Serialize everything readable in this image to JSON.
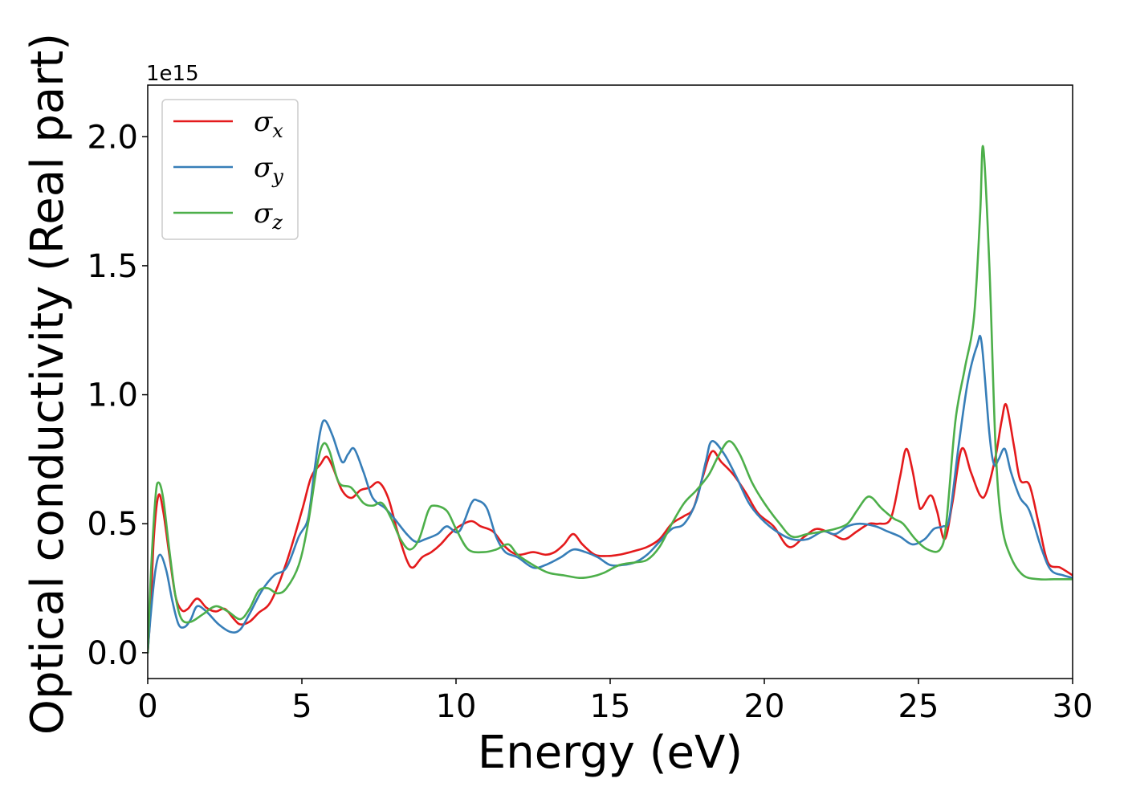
{
  "chart_data": {
    "type": "line",
    "xlabel": "Energy (eV)",
    "ylabel": "Optical conductivity (Real part)",
    "y_offset_text": "1e15",
    "xlim": [
      0,
      30
    ],
    "ylim": [
      -0.1,
      2.2
    ],
    "x_ticks": [
      0,
      5,
      10,
      15,
      20,
      25,
      30
    ],
    "x_tick_labels": [
      "0",
      "5",
      "10",
      "15",
      "20",
      "25",
      "30"
    ],
    "y_ticks": [
      0.0,
      0.5,
      1.0,
      1.5,
      2.0
    ],
    "y_tick_labels": [
      "0.0",
      "0.5",
      "1.0",
      "1.5",
      "2.0"
    ],
    "grid": false,
    "legend_position": "top-left",
    "series": [
      {
        "name": "σx",
        "label_main": "σ",
        "label_sub": "x",
        "color": "#e41a1c",
        "points": [
          [
            0,
            0
          ],
          [
            0.1,
            0.18
          ],
          [
            0.2,
            0.45
          ],
          [
            0.35,
            0.61
          ],
          [
            0.5,
            0.55
          ],
          [
            0.7,
            0.38
          ],
          [
            0.9,
            0.22
          ],
          [
            1.1,
            0.165
          ],
          [
            1.3,
            0.17
          ],
          [
            1.6,
            0.21
          ],
          [
            1.9,
            0.175
          ],
          [
            2.2,
            0.16
          ],
          [
            2.5,
            0.17
          ],
          [
            2.8,
            0.13
          ],
          [
            3.0,
            0.11
          ],
          [
            3.3,
            0.12
          ],
          [
            3.6,
            0.155
          ],
          [
            4.0,
            0.2
          ],
          [
            4.5,
            0.35
          ],
          [
            5.0,
            0.55
          ],
          [
            5.3,
            0.68
          ],
          [
            5.6,
            0.73
          ],
          [
            5.8,
            0.76
          ],
          [
            6.0,
            0.72
          ],
          [
            6.3,
            0.63
          ],
          [
            6.6,
            0.6
          ],
          [
            6.9,
            0.63
          ],
          [
            7.2,
            0.64
          ],
          [
            7.5,
            0.66
          ],
          [
            7.8,
            0.6
          ],
          [
            8.1,
            0.47
          ],
          [
            8.4,
            0.36
          ],
          [
            8.6,
            0.33
          ],
          [
            8.9,
            0.37
          ],
          [
            9.2,
            0.39
          ],
          [
            9.5,
            0.42
          ],
          [
            9.8,
            0.46
          ],
          [
            10.1,
            0.49
          ],
          [
            10.5,
            0.51
          ],
          [
            10.8,
            0.49
          ],
          [
            11.2,
            0.47
          ],
          [
            11.6,
            0.41
          ],
          [
            12.0,
            0.38
          ],
          [
            12.5,
            0.39
          ],
          [
            12.9,
            0.38
          ],
          [
            13.2,
            0.39
          ],
          [
            13.5,
            0.42
          ],
          [
            13.8,
            0.46
          ],
          [
            14.1,
            0.42
          ],
          [
            14.5,
            0.38
          ],
          [
            14.9,
            0.375
          ],
          [
            15.3,
            0.38
          ],
          [
            15.8,
            0.395
          ],
          [
            16.2,
            0.41
          ],
          [
            16.6,
            0.44
          ],
          [
            17.0,
            0.5
          ],
          [
            17.4,
            0.53
          ],
          [
            17.7,
            0.56
          ],
          [
            18.0,
            0.68
          ],
          [
            18.3,
            0.78
          ],
          [
            18.6,
            0.74
          ],
          [
            19.0,
            0.69
          ],
          [
            19.4,
            0.62
          ],
          [
            19.8,
            0.54
          ],
          [
            20.3,
            0.49
          ],
          [
            20.8,
            0.41
          ],
          [
            21.3,
            0.45
          ],
          [
            21.7,
            0.48
          ],
          [
            22.2,
            0.46
          ],
          [
            22.6,
            0.44
          ],
          [
            23.0,
            0.47
          ],
          [
            23.4,
            0.5
          ],
          [
            23.7,
            0.5
          ],
          [
            24.1,
            0.52
          ],
          [
            24.4,
            0.68
          ],
          [
            24.6,
            0.79
          ],
          [
            24.8,
            0.71
          ],
          [
            25.0,
            0.58
          ],
          [
            25.1,
            0.56
          ],
          [
            25.4,
            0.61
          ],
          [
            25.6,
            0.55
          ],
          [
            25.85,
            0.44
          ],
          [
            26.1,
            0.58
          ],
          [
            26.4,
            0.79
          ],
          [
            26.7,
            0.7
          ],
          [
            27.0,
            0.61
          ],
          [
            27.2,
            0.62
          ],
          [
            27.5,
            0.76
          ],
          [
            27.7,
            0.9
          ],
          [
            27.85,
            0.96
          ],
          [
            28.1,
            0.8
          ],
          [
            28.3,
            0.67
          ],
          [
            28.6,
            0.65
          ],
          [
            28.9,
            0.5
          ],
          [
            29.2,
            0.35
          ],
          [
            29.6,
            0.33
          ],
          [
            30.0,
            0.3
          ]
        ]
      },
      {
        "name": "σy",
        "label_main": "σ",
        "label_sub": "y",
        "color": "#377eb8",
        "points": [
          [
            0,
            0
          ],
          [
            0.1,
            0.15
          ],
          [
            0.25,
            0.32
          ],
          [
            0.4,
            0.38
          ],
          [
            0.6,
            0.32
          ],
          [
            0.8,
            0.2
          ],
          [
            1.0,
            0.11
          ],
          [
            1.2,
            0.1
          ],
          [
            1.4,
            0.13
          ],
          [
            1.6,
            0.18
          ],
          [
            1.9,
            0.16
          ],
          [
            2.3,
            0.11
          ],
          [
            2.7,
            0.08
          ],
          [
            3.0,
            0.09
          ],
          [
            3.3,
            0.15
          ],
          [
            3.7,
            0.24
          ],
          [
            4.1,
            0.3
          ],
          [
            4.5,
            0.33
          ],
          [
            4.9,
            0.45
          ],
          [
            5.2,
            0.52
          ],
          [
            5.4,
            0.7
          ],
          [
            5.6,
            0.86
          ],
          [
            5.75,
            0.9
          ],
          [
            6.0,
            0.84
          ],
          [
            6.3,
            0.74
          ],
          [
            6.5,
            0.77
          ],
          [
            6.7,
            0.79
          ],
          [
            7.0,
            0.7
          ],
          [
            7.3,
            0.6
          ],
          [
            7.7,
            0.56
          ],
          [
            8.0,
            0.52
          ],
          [
            8.4,
            0.46
          ],
          [
            8.7,
            0.43
          ],
          [
            9.0,
            0.44
          ],
          [
            9.4,
            0.46
          ],
          [
            9.7,
            0.49
          ],
          [
            10.1,
            0.47
          ],
          [
            10.5,
            0.58
          ],
          [
            10.7,
            0.59
          ],
          [
            11.0,
            0.56
          ],
          [
            11.3,
            0.45
          ],
          [
            11.6,
            0.39
          ],
          [
            12.0,
            0.37
          ],
          [
            12.5,
            0.33
          ],
          [
            12.9,
            0.34
          ],
          [
            13.4,
            0.37
          ],
          [
            13.8,
            0.4
          ],
          [
            14.2,
            0.39
          ],
          [
            14.6,
            0.37
          ],
          [
            15.0,
            0.34
          ],
          [
            15.4,
            0.34
          ],
          [
            15.8,
            0.35
          ],
          [
            16.2,
            0.38
          ],
          [
            16.6,
            0.43
          ],
          [
            17.0,
            0.48
          ],
          [
            17.4,
            0.5
          ],
          [
            17.8,
            0.59
          ],
          [
            18.1,
            0.74
          ],
          [
            18.3,
            0.82
          ],
          [
            18.7,
            0.77
          ],
          [
            19.1,
            0.68
          ],
          [
            19.5,
            0.58
          ],
          [
            19.9,
            0.52
          ],
          [
            20.4,
            0.47
          ],
          [
            20.9,
            0.44
          ],
          [
            21.4,
            0.44
          ],
          [
            21.9,
            0.47
          ],
          [
            22.3,
            0.46
          ],
          [
            22.7,
            0.49
          ],
          [
            23.1,
            0.5
          ],
          [
            23.6,
            0.49
          ],
          [
            24.0,
            0.47
          ],
          [
            24.4,
            0.45
          ],
          [
            24.8,
            0.42
          ],
          [
            25.2,
            0.44
          ],
          [
            25.5,
            0.48
          ],
          [
            25.8,
            0.49
          ],
          [
            26.0,
            0.52
          ],
          [
            26.3,
            0.8
          ],
          [
            26.6,
            1.05
          ],
          [
            26.9,
            1.19
          ],
          [
            27.05,
            1.2
          ],
          [
            27.3,
            0.85
          ],
          [
            27.45,
            0.73
          ],
          [
            27.6,
            0.75
          ],
          [
            27.8,
            0.79
          ],
          [
            28.0,
            0.7
          ],
          [
            28.3,
            0.6
          ],
          [
            28.6,
            0.55
          ],
          [
            29.0,
            0.4
          ],
          [
            29.3,
            0.32
          ],
          [
            29.7,
            0.3
          ],
          [
            30.0,
            0.29
          ]
        ]
      },
      {
        "name": "σz",
        "label_main": "σ",
        "label_sub": "z",
        "color": "#4daf4a",
        "points": [
          [
            0,
            0
          ],
          [
            0.1,
            0.3
          ],
          [
            0.25,
            0.6
          ],
          [
            0.35,
            0.66
          ],
          [
            0.5,
            0.6
          ],
          [
            0.7,
            0.4
          ],
          [
            0.9,
            0.22
          ],
          [
            1.1,
            0.13
          ],
          [
            1.4,
            0.12
          ],
          [
            1.8,
            0.15
          ],
          [
            2.2,
            0.18
          ],
          [
            2.6,
            0.16
          ],
          [
            3.0,
            0.13
          ],
          [
            3.3,
            0.17
          ],
          [
            3.6,
            0.24
          ],
          [
            3.9,
            0.25
          ],
          [
            4.2,
            0.23
          ],
          [
            4.5,
            0.25
          ],
          [
            4.9,
            0.34
          ],
          [
            5.2,
            0.5
          ],
          [
            5.5,
            0.73
          ],
          [
            5.7,
            0.81
          ],
          [
            5.9,
            0.78
          ],
          [
            6.2,
            0.66
          ],
          [
            6.6,
            0.64
          ],
          [
            7.0,
            0.58
          ],
          [
            7.3,
            0.57
          ],
          [
            7.6,
            0.58
          ],
          [
            7.9,
            0.52
          ],
          [
            8.2,
            0.44
          ],
          [
            8.5,
            0.4
          ],
          [
            8.8,
            0.44
          ],
          [
            9.1,
            0.55
          ],
          [
            9.3,
            0.57
          ],
          [
            9.7,
            0.55
          ],
          [
            10.0,
            0.48
          ],
          [
            10.4,
            0.4
          ],
          [
            10.9,
            0.39
          ],
          [
            11.3,
            0.4
          ],
          [
            11.7,
            0.42
          ],
          [
            12.0,
            0.38
          ],
          [
            12.5,
            0.34
          ],
          [
            13.0,
            0.31
          ],
          [
            13.5,
            0.3
          ],
          [
            14.0,
            0.29
          ],
          [
            14.4,
            0.295
          ],
          [
            14.8,
            0.31
          ],
          [
            15.3,
            0.34
          ],
          [
            15.8,
            0.35
          ],
          [
            16.2,
            0.36
          ],
          [
            16.6,
            0.41
          ],
          [
            17.0,
            0.5
          ],
          [
            17.4,
            0.58
          ],
          [
            17.8,
            0.63
          ],
          [
            18.2,
            0.69
          ],
          [
            18.5,
            0.76
          ],
          [
            18.85,
            0.82
          ],
          [
            19.2,
            0.77
          ],
          [
            19.6,
            0.66
          ],
          [
            20.0,
            0.58
          ],
          [
            20.5,
            0.5
          ],
          [
            20.9,
            0.45
          ],
          [
            21.4,
            0.46
          ],
          [
            21.9,
            0.47
          ],
          [
            22.3,
            0.48
          ],
          [
            22.7,
            0.5
          ],
          [
            23.0,
            0.55
          ],
          [
            23.3,
            0.6
          ],
          [
            23.5,
            0.6
          ],
          [
            23.8,
            0.56
          ],
          [
            24.2,
            0.52
          ],
          [
            24.5,
            0.5
          ],
          [
            24.9,
            0.44
          ],
          [
            25.3,
            0.4
          ],
          [
            25.7,
            0.4
          ],
          [
            25.9,
            0.5
          ],
          [
            26.2,
            0.9
          ],
          [
            26.5,
            1.1
          ],
          [
            26.8,
            1.3
          ],
          [
            27.0,
            1.7
          ],
          [
            27.1,
            1.96
          ],
          [
            27.3,
            1.5
          ],
          [
            27.5,
            0.8
          ],
          [
            27.7,
            0.5
          ],
          [
            28.0,
            0.37
          ],
          [
            28.4,
            0.3
          ],
          [
            28.9,
            0.285
          ],
          [
            29.4,
            0.285
          ],
          [
            30.0,
            0.285
          ]
        ]
      }
    ]
  }
}
